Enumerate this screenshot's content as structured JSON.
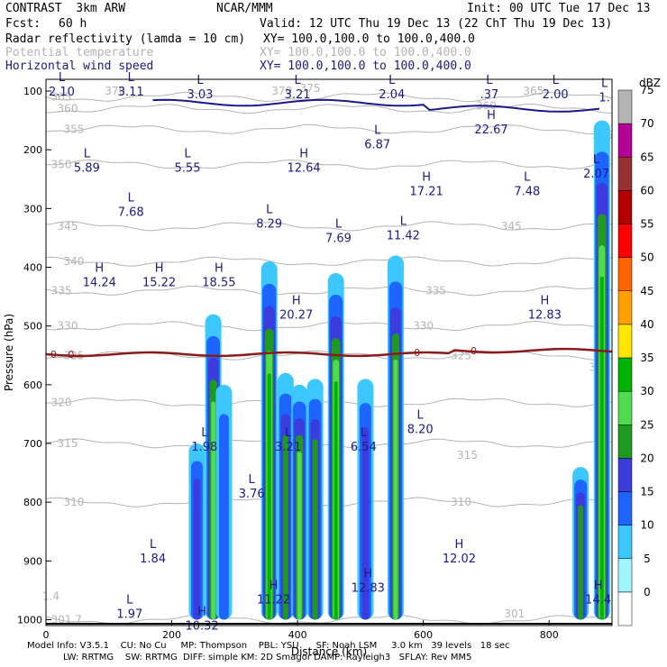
{
  "header": {
    "model": "CONTRAST  3km ARW",
    "org": "NCAR/MMM",
    "init": "Init: 00 UTC Tue 17 Dec 13",
    "fcst_label": "Fcst:",
    "fcst_value": "60 h",
    "valid": "Valid: 12 UTC Thu 19 Dec 13 (22 ChT Thu 19 Dec 13)",
    "field1": "Radar reflectivity (lamda = 10 cm)",
    "field1_xy": "XY= 100.0,100.0 to 100.0,400.0",
    "field2": "Potential temperature",
    "field2_xy": "XY= 100.0,100.0 to 100.0,400.0",
    "field3": "Horizontal wind speed",
    "field3_xy": "XY= 100.0,100.0 to 100.0,400.0"
  },
  "footer": {
    "line1": "Model Info: V3.5.1    CU: No Cu     MP: Thompson    PBL: YSU      SF: Noah LSM     3.0 km   39 levels   18 sec",
    "line2": "LW: RRTMG    SW: RRTMG  DIFF: simple KM: 2D Smagor DAMP: Rayleigh3   SFLAY: Rev MM5"
  },
  "colors": {
    "theta": "#b4b4b4",
    "wind": "#1a1a8c",
    "zero_line": "#8b1a1a",
    "ground": "#000000"
  },
  "chart_data": {
    "type": "heatmap",
    "xlabel": "Distance (km)",
    "ylabel": "Pressure (hPa)",
    "xlim": [
      0,
      900
    ],
    "ylim": [
      1010,
      80
    ],
    "x_ticks": [
      0,
      200,
      400,
      600,
      800
    ],
    "y_ticks": [
      100,
      200,
      300,
      400,
      500,
      600,
      700,
      800,
      900,
      1000
    ],
    "colorbar": {
      "unit": "dBZ",
      "levels": [
        0,
        5,
        10,
        15,
        20,
        25,
        30,
        35,
        40,
        45,
        50,
        55,
        60,
        65,
        70,
        75
      ],
      "colors": [
        "#ffffff",
        "#9ff5ff",
        "#3cc8ff",
        "#1e64ff",
        "#3c3cdc",
        "#1e9a1e",
        "#50dc50",
        "#00b400",
        "#ffe600",
        "#ffa000",
        "#ff6400",
        "#ff0000",
        "#b40000",
        "#963232",
        "#b40096",
        "#b4b4b4"
      ]
    },
    "reflectivity_cells": [
      {
        "x": 240,
        "p_top": 700,
        "p_bot": 1000,
        "dbz": 20
      },
      {
        "x": 266,
        "p_top": 480,
        "p_bot": 1000,
        "dbz": 30
      },
      {
        "x": 283,
        "p_top": 600,
        "p_bot": 1000,
        "dbz": 15
      },
      {
        "x": 355,
        "p_top": 390,
        "p_bot": 1000,
        "dbz": 35
      },
      {
        "x": 381,
        "p_top": 580,
        "p_bot": 1000,
        "dbz": 25
      },
      {
        "x": 403,
        "p_top": 600,
        "p_bot": 1000,
        "dbz": 30
      },
      {
        "x": 428,
        "p_top": 590,
        "p_bot": 1000,
        "dbz": 25
      },
      {
        "x": 461,
        "p_top": 410,
        "p_bot": 1000,
        "dbz": 35
      },
      {
        "x": 508,
        "p_top": 590,
        "p_bot": 1000,
        "dbz": 20
      },
      {
        "x": 556,
        "p_top": 380,
        "p_bot": 1000,
        "dbz": 30
      },
      {
        "x": 850,
        "p_top": 740,
        "p_bot": 1000,
        "dbz": 25
      },
      {
        "x": 884,
        "p_top": 150,
        "p_bot": 1000,
        "dbz": 35
      }
    ],
    "theta_contours": [
      {
        "label": "365",
        "p": 110
      },
      {
        "label": "360",
        "p": 130
      },
      {
        "label": "355",
        "p": 165
      },
      {
        "label": "350",
        "p": 225
      },
      {
        "label": "345",
        "p": 330
      },
      {
        "label": "340",
        "p": 390
      },
      {
        "label": "335",
        "p": 440
      },
      {
        "label": "330",
        "p": 500
      },
      {
        "label": "325",
        "p": 550
      },
      {
        "label": "320",
        "p": 630
      },
      {
        "label": "315",
        "p": 700
      },
      {
        "label": "310",
        "p": 800
      },
      {
        "label": "301.7",
        "p": 1000
      }
    ],
    "extra_theta_labels": [
      {
        "label": "370",
        "x": 110,
        "p": 100
      },
      {
        "label": "370",
        "x": 375,
        "p": 100
      },
      {
        "label": "375",
        "x": 420,
        "p": 95
      },
      {
        "label": "365",
        "x": 775,
        "p": 100
      },
      {
        "label": "360",
        "x": 700,
        "p": 125
      },
      {
        "label": "355",
        "x": 885,
        "p": 175
      },
      {
        "label": "345",
        "x": 740,
        "p": 330
      },
      {
        "label": "335",
        "x": 620,
        "p": 440
      },
      {
        "label": "330",
        "x": 600,
        "p": 500
      },
      {
        "label": "325",
        "x": 660,
        "p": 550
      },
      {
        "label": "325",
        "x": 880,
        "p": 570
      },
      {
        "label": "315",
        "x": 670,
        "p": 720
      },
      {
        "label": "310",
        "x": 660,
        "p": 800
      },
      {
        "label": "301",
        "x": 745,
        "p": 990
      },
      {
        "label": "1.4",
        "x": 8,
        "p": 960
      }
    ],
    "zero_isotherm_p": 548,
    "zero_isotherm_labels": [
      {
        "label": "0",
        "x": 12,
        "p": 548
      },
      {
        "label": "0",
        "x": 40,
        "p": 548
      },
      {
        "label": "0",
        "x": 590,
        "p": 545
      },
      {
        "label": "0",
        "x": 680,
        "p": 542
      }
    ],
    "wind_extrema": [
      {
        "type": "L",
        "value": "2.10",
        "x": 25,
        "p": 95
      },
      {
        "type": "L",
        "value": "3.11",
        "x": 135,
        "p": 95
      },
      {
        "type": "L",
        "value": "3.03",
        "x": 245,
        "p": 100
      },
      {
        "type": "L",
        "value": "3.21",
        "x": 400,
        "p": 100
      },
      {
        "type": "L",
        "value": "2.04",
        "x": 550,
        "p": 100
      },
      {
        "type": "L",
        "value": ".37",
        "x": 705,
        "p": 100
      },
      {
        "type": "L",
        "value": "2.00",
        "x": 810,
        "p": 100
      },
      {
        "type": "L",
        "value": "1.",
        "x": 888,
        "p": 105
      },
      {
        "type": "H",
        "value": "22.67",
        "x": 708,
        "p": 160
      },
      {
        "type": "L",
        "value": "6.87",
        "x": 527,
        "p": 185
      },
      {
        "type": "L",
        "value": "5.89",
        "x": 65,
        "p": 225
      },
      {
        "type": "L",
        "value": "5.55",
        "x": 225,
        "p": 225
      },
      {
        "type": "H",
        "value": "12.64",
        "x": 410,
        "p": 225
      },
      {
        "type": "H",
        "value": "17.21",
        "x": 605,
        "p": 265
      },
      {
        "type": "L",
        "value": "7.48",
        "x": 765,
        "p": 265
      },
      {
        "type": "L",
        "value": "2.07",
        "x": 875,
        "p": 235
      },
      {
        "type": "L",
        "value": "7.68",
        "x": 135,
        "p": 300
      },
      {
        "type": "L",
        "value": "8.29",
        "x": 355,
        "p": 320
      },
      {
        "type": "L",
        "value": "7.69",
        "x": 465,
        "p": 345
      },
      {
        "type": "L",
        "value": "11.42",
        "x": 568,
        "p": 340
      },
      {
        "type": "H",
        "value": "14.24",
        "x": 85,
        "p": 420
      },
      {
        "type": "H",
        "value": "15.22",
        "x": 180,
        "p": 420
      },
      {
        "type": "H",
        "value": "18.55",
        "x": 275,
        "p": 420
      },
      {
        "type": "H",
        "value": "20.27",
        "x": 398,
        "p": 475
      },
      {
        "type": "H",
        "value": "12.83",
        "x": 793,
        "p": 475
      },
      {
        "type": "L",
        "value": "8.20",
        "x": 595,
        "p": 670
      },
      {
        "type": "L",
        "value": "1.98",
        "x": 252,
        "p": 700
      },
      {
        "type": "L",
        "value": "3.21",
        "x": 385,
        "p": 700
      },
      {
        "type": "L",
        "value": "6.54",
        "x": 505,
        "p": 700
      },
      {
        "type": "L",
        "value": "3.76",
        "x": 327,
        "p": 780
      },
      {
        "type": "L",
        "value": "1.84",
        "x": 170,
        "p": 890
      },
      {
        "type": "H",
        "value": "12.02",
        "x": 657,
        "p": 890
      },
      {
        "type": "H",
        "value": "11.22",
        "x": 362,
        "p": 960
      },
      {
        "type": "H",
        "value": "12.83",
        "x": 512,
        "p": 940
      },
      {
        "type": "H",
        "value": "14.4",
        "x": 878,
        "p": 960
      },
      {
        "type": "L",
        "value": "1.97",
        "x": 133,
        "p": 985
      },
      {
        "type": "H",
        "value": "10.32",
        "x": 248,
        "p": 1005
      }
    ]
  }
}
